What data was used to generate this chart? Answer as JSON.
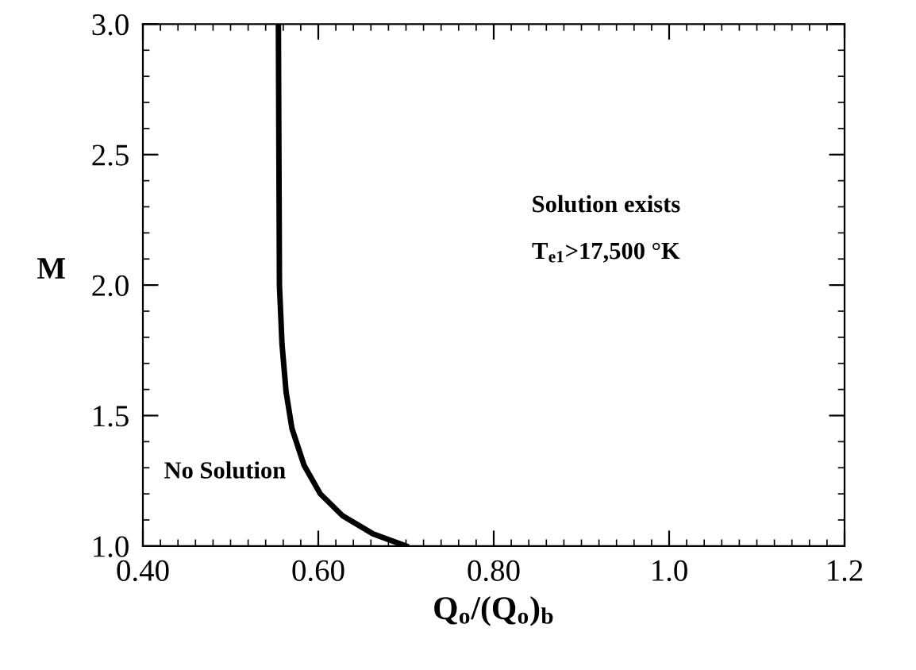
{
  "chart_data": {
    "type": "line",
    "xlabel": "Q$_{o}$/(Q$_{o}$)$_{b}$",
    "ylabel": "M",
    "x": [
      0.5545,
      0.5557,
      0.5586,
      0.5633,
      0.57,
      0.5837,
      0.6023,
      0.6274,
      0.6624,
      0.7
    ],
    "series": [
      {
        "color": "#000000",
        "values": [
          3.0,
          2.0,
          1.775,
          1.59,
          1.45,
          1.31,
          1.2,
          1.117,
          1.047,
          1.0
        ]
      }
    ],
    "xlim": [
      0.4,
      1.2
    ],
    "ylim": [
      1.0,
      3.0
    ],
    "xticks": [
      {
        "value": 0.4,
        "label": "0.40"
      },
      {
        "value": 0.6,
        "label": "0.60"
      },
      {
        "value": 0.8,
        "label": "0.80"
      },
      {
        "value": 1,
        "label": "1.0"
      },
      1.2
    ],
    "yticks": [
      {
        "value": 1,
        "label": "1.0"
      },
      1.5,
      {
        "value": 2,
        "label": "2.0"
      },
      2.5,
      {
        "value": 3,
        "label": "3.0"
      }
    ],
    "annotations": [
      "No Solution",
      "Solution exists",
      "T$_{e1}$>17,500 °K"
    ],
    "grid": false,
    "legend": false,
    "marker": "none",
    "line_style": "solid"
  }
}
